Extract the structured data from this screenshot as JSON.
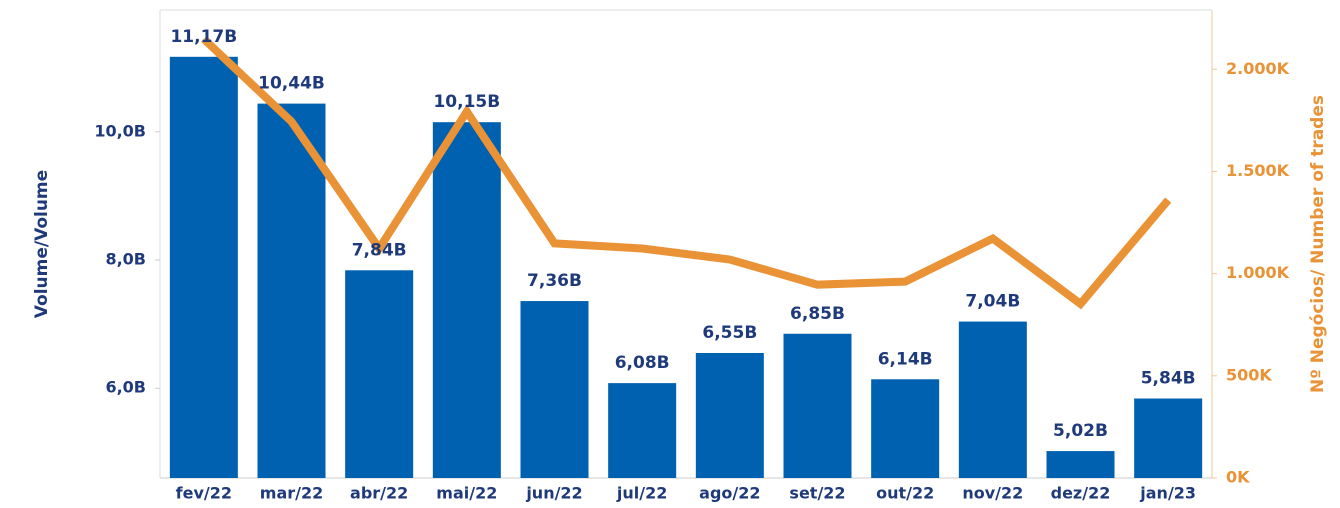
{
  "chart_data": {
    "type": "bar_line",
    "categories": [
      "fev/22",
      "mar/22",
      "abr/22",
      "mai/22",
      "jun/22",
      "jul/22",
      "ago/22",
      "set/22",
      "out/22",
      "nov/22",
      "dez/22",
      "jan/23"
    ],
    "series": [
      {
        "name": "Volume/Volume",
        "color": "#0061b0",
        "values": [
          11.17,
          10.44,
          7.84,
          10.15,
          7.36,
          6.08,
          6.55,
          6.85,
          6.14,
          7.04,
          5.02,
          5.84
        ],
        "value_labels": [
          "11,17B",
          "10,44B",
          "7,84B",
          "10,15B",
          "7,36B",
          "6,08B",
          "6,55B",
          "6,85B",
          "6,14B",
          "7,04B",
          "5,02B",
          "5,84B"
        ]
      },
      {
        "name": "Nº Negócios/ Number of trades",
        "color": "#ea9236",
        "axis": "y2",
        "values": [
          2148,
          1744,
          1123,
          1793,
          1148,
          1123,
          1069,
          946,
          961,
          1172,
          852,
          1360
        ]
      }
    ],
    "ylabel": "Volume/Volume",
    "y2label": "Nº Negócios/ Number of trades",
    "ylim": [
      4.6,
      11.9
    ],
    "yticks": [
      {
        "value": 6,
        "label": "6,0B"
      },
      {
        "value": 8,
        "label": "8,0B"
      },
      {
        "value": 10,
        "label": "10,0B"
      }
    ],
    "y2lim": [
      0,
      2290
    ],
    "y2ticks": [
      {
        "value": 0,
        "label": "0K"
      },
      {
        "value": 500,
        "label": "500K"
      },
      {
        "value": 1000,
        "label": "1.000K"
      },
      {
        "value": 1500,
        "label": "1.500K"
      },
      {
        "value": 2000,
        "label": "2.000K"
      }
    ]
  }
}
